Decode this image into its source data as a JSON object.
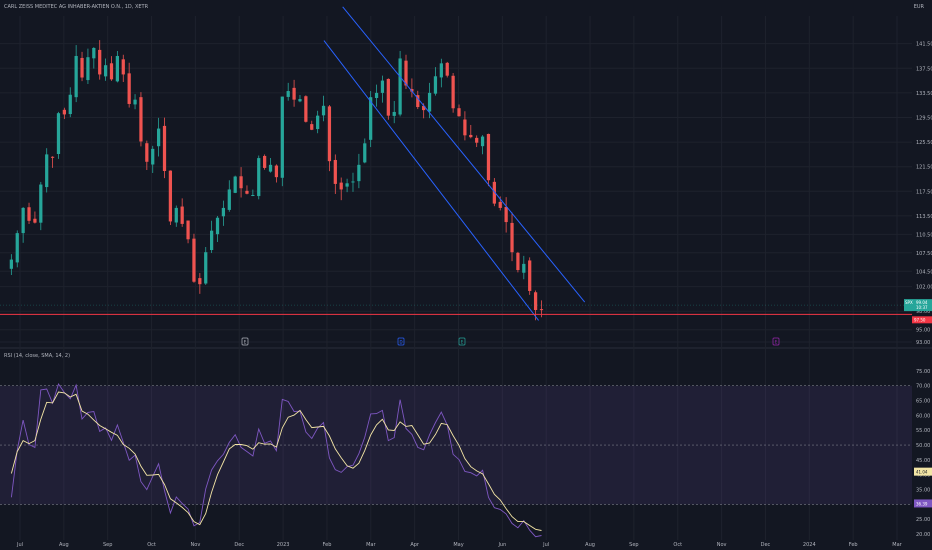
{
  "header": {
    "title": "CARL ZEISS MEDITEC AG INHABER-AKTIEN O.N., 1D, XETR",
    "currency": "EUR"
  },
  "rsi_panel": {
    "title": "RSI (14, close, SMA, 14, 2)"
  },
  "colors": {
    "background": "#131722",
    "up": "#26a69a",
    "down": "#ef5350",
    "channel": "#2962ff",
    "rsi": "#7e57c2",
    "rsi_ma": "#f3e5a5",
    "support": "#f23645"
  },
  "event_markers": [
    "E",
    "D",
    "E",
    "E"
  ],
  "chart_data": [
    {
      "type": "candlestick",
      "title": "",
      "x_ticks": [
        "Jul",
        "Aug",
        "Sep",
        "Oct",
        "Nov",
        "Dec",
        "2023",
        "Feb",
        "Mar",
        "Apr",
        "May",
        "Jun",
        "Jul",
        "Aug",
        "Sep",
        "Oct",
        "Nov",
        "Dec",
        "2024",
        "Feb",
        "Mar"
      ],
      "y_ticks": [
        141.5,
        137.5,
        133.5,
        129.5,
        125.5,
        121.5,
        117.5,
        113.5,
        110.5,
        107.5,
        104.5,
        102.0,
        98.0,
        95.0,
        93.0
      ],
      "y_tick_labels": [
        "141.50",
        "137.50",
        "133.50",
        "129.50",
        "125.50",
        "121.50",
        "117.50",
        "113.50",
        "110.50",
        "107.50",
        "104.50",
        "102.00",
        "98.00",
        "95.00",
        "93.00"
      ],
      "ylim": [
        93.0,
        146.0
      ],
      "price_labels": [
        {
          "label": "SPX",
          "value": "99.04",
          "sub": "10:37",
          "color": "#26a69a"
        },
        {
          "label": "",
          "value": "97.50",
          "color": "#f23645"
        }
      ],
      "support_level": 97.5,
      "channel_lines": [
        {
          "from": [
            "2023-01-28",
            142.0
          ],
          "to": [
            "2023-06-26",
            96.5
          ]
        },
        {
          "from": [
            "2023-02-10",
            147.5
          ],
          "to": [
            "2023-07-28",
            99.5
          ]
        }
      ],
      "closes": [
        106.4,
        110.7,
        114.8,
        112.7,
        112.4,
        118.6,
        123.5,
        123.0,
        130.2,
        130.0,
        133.2,
        139.5,
        136.0,
        139.3,
        140.8,
        136.5,
        138.0,
        135.7,
        139.5,
        136.5,
        131.7,
        132.4,
        125.6,
        122.3,
        124.4,
        127.7,
        120.8,
        112.6,
        114.8,
        112.2,
        109.7,
        102.8,
        102.4,
        107.6,
        111.1,
        113.2,
        114.8,
        117.8,
        119.9,
        118.0,
        117.1,
        116.9,
        122.9,
        121.3,
        121.8,
        119.8,
        132.9,
        133.8,
        132.4,
        132.5,
        128.8,
        127.5,
        129.8,
        131.4,
        122.4,
        118.7,
        117.8,
        118.8,
        119.1,
        121.8,
        125.3,
        132.8,
        133.5,
        135.5,
        129.8,
        130.4,
        139.1,
        134.7,
        133.7,
        131.2,
        130.7,
        133.5,
        136.2,
        138.3,
        136.3,
        131.0,
        129.7,
        126.6,
        126.3,
        125.4,
        126.4,
        119.3,
        115.5,
        114.8,
        112.5,
        107.6,
        104.7,
        105.7,
        101.3,
        98.2,
        98.3
      ],
      "date_range": [
        "2022-06-25",
        "2023-06-28"
      ]
    },
    {
      "type": "line",
      "title": "",
      "series": [
        {
          "name": "RSI",
          "values": [
            32.4,
            48.2,
            58.4,
            50.2,
            49.2,
            68.6,
            68.9,
            64.1,
            70.6,
            67.7,
            65.6,
            70.2,
            58.8,
            61.0,
            61.3,
            54.6,
            55.8,
            51.6,
            56.8,
            50.9,
            44.9,
            46.6,
            37.7,
            35.0,
            39.4,
            43.7,
            34.7,
            27.1,
            32.5,
            30.3,
            28.4,
            22.8,
            23.9,
            35.2,
            41.6,
            44.7,
            46.9,
            50.9,
            53.5,
            49.2,
            47.8,
            46.3,
            55.4,
            50.6,
            51.4,
            48.1,
            65.4,
            64.7,
            61.3,
            61.4,
            54.4,
            52.2,
            55.7,
            57.6,
            45.7,
            41.7,
            40.8,
            42.7,
            43.2,
            47.1,
            52.7,
            60.5,
            60.6,
            61.7,
            51.5,
            52.5,
            65.3,
            55.6,
            53.6,
            49.2,
            48.4,
            53.5,
            57.6,
            61.1,
            56.8,
            46.9,
            45.1,
            41.1,
            40.7,
            39.6,
            41.5,
            32.4,
            28.9,
            28.3,
            26.8,
            23.6,
            22.1,
            24.5,
            21.3,
            19.1,
            19.5
          ]
        },
        {
          "name": "SMA",
          "values": [
            40.4,
            47.8,
            51.5,
            50.5,
            51.5,
            58.7,
            64.4,
            64.2,
            67.9,
            67.6,
            66.2,
            67.1,
            61.5,
            60.4,
            58.4,
            56.6,
            55.5,
            54.3,
            53.3,
            50.2,
            48.9,
            47.0,
            42.9,
            39.8,
            39.9,
            40.1,
            36.7,
            31.9,
            30.5,
            29.0,
            27.2,
            24.2,
            23.2,
            26.9,
            34.1,
            40.0,
            44.3,
            48.7,
            50.2,
            50.2,
            49.8,
            48.6,
            50.8,
            50.3,
            50.4,
            49.3,
            55.8,
            59.4,
            60.1,
            61.7,
            58.6,
            55.9,
            56.1,
            56.3,
            53.1,
            48.7,
            45.7,
            43.0,
            42.2,
            43.9,
            48.2,
            53.4,
            56.8,
            58.7,
            55.1,
            54.9,
            57.8,
            56.3,
            56.6,
            53.5,
            50.3,
            50.7,
            53.6,
            57.3,
            56.9,
            53.2,
            49.9,
            45.4,
            42.7,
            41.3,
            40.3,
            36.9,
            33.4,
            31.5,
            28.6,
            25.9,
            24.2,
            24.2,
            22.9,
            21.6,
            21.2
          ]
        }
      ],
      "y_ticks": [
        75,
        70,
        65,
        60,
        55,
        50,
        45,
        40,
        35,
        30,
        25,
        20
      ],
      "y_tick_labels": [
        "75.00",
        "70.00",
        "65.00",
        "60.00",
        "55.00",
        "50.00",
        "45.00",
        "40.00",
        "35.00",
        "30.00",
        "25.00",
        "20.00"
      ],
      "ylim": [
        18,
        78
      ],
      "overbought": 70,
      "mid": 50,
      "oversold": 30,
      "value_labels": [
        "41.04",
        "36.39"
      ]
    }
  ]
}
